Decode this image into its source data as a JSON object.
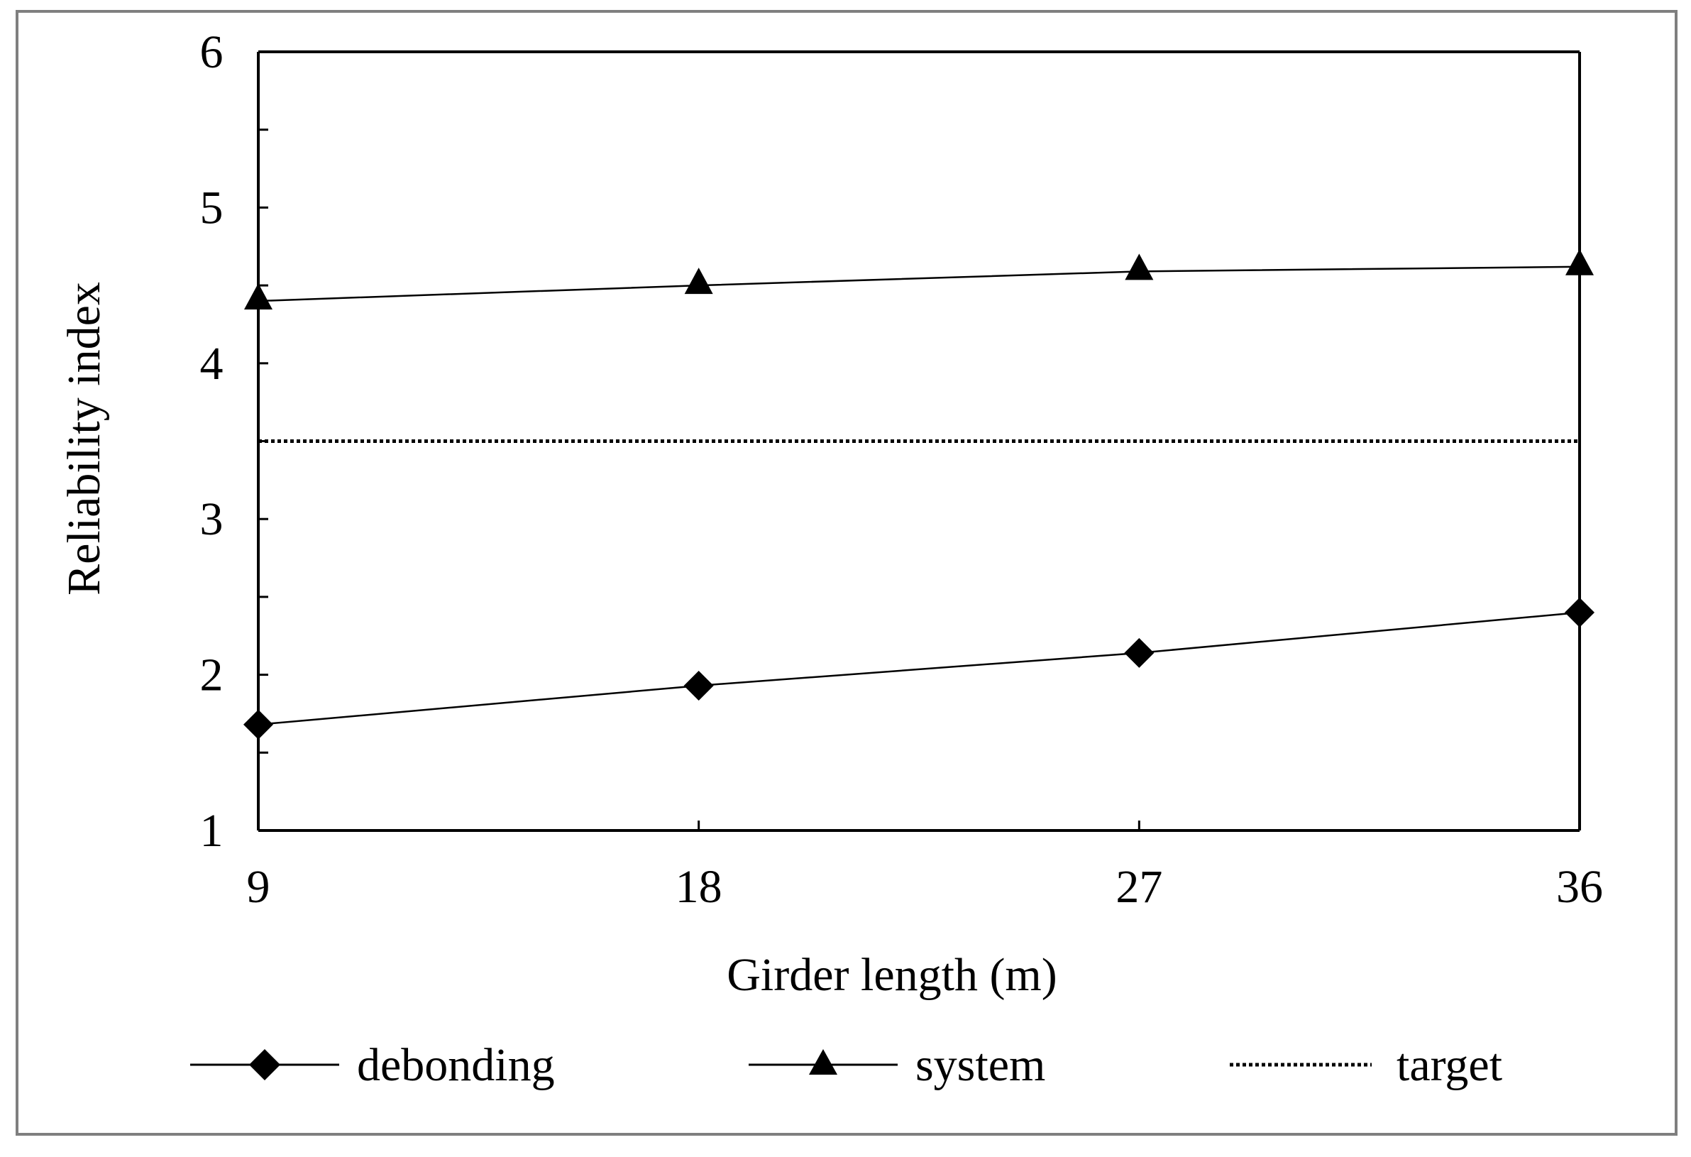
{
  "chart_data": {
    "type": "line",
    "title": "",
    "xlabel": "Girder length (m)",
    "ylabel": "Reliability index",
    "x": [
      9,
      18,
      27,
      36
    ],
    "xticks": [
      "9",
      "18",
      "27",
      "36"
    ],
    "yticks": [
      "1",
      "2",
      "3",
      "4",
      "5",
      "6"
    ],
    "ylim": [
      1,
      6
    ],
    "grid": false,
    "legend_position": "bottom",
    "series": [
      {
        "name": "debonding",
        "marker": "diamond",
        "line_style": "solid",
        "values": [
          1.68,
          1.93,
          2.14,
          2.4
        ]
      },
      {
        "name": "system",
        "marker": "triangle",
        "line_style": "solid",
        "values": [
          4.4,
          4.5,
          4.59,
          4.62
        ]
      },
      {
        "name": "target",
        "marker": "none",
        "line_style": "dotted",
        "values": [
          3.5,
          3.5,
          3.5,
          3.5
        ]
      }
    ]
  },
  "colors": {
    "ink": "#000000",
    "frame": "#7f7f7f",
    "background": "#ffffff"
  }
}
